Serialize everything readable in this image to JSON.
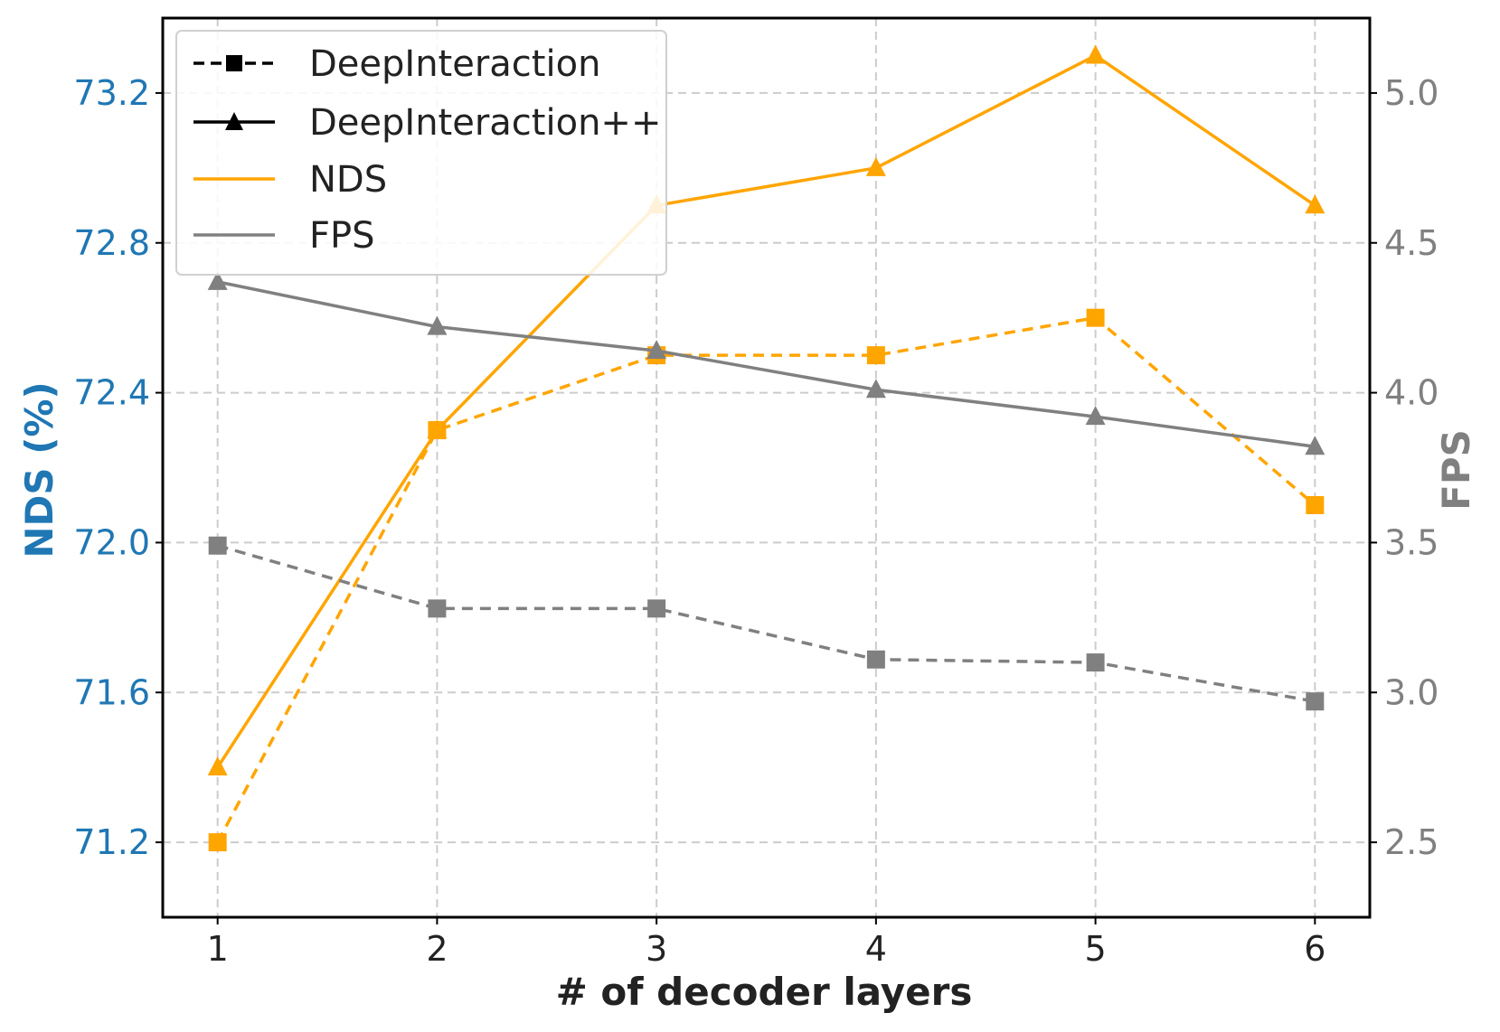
{
  "colors": {
    "nds": "#FFA500",
    "fps": "#808080",
    "left_axis": "#1F77B4",
    "right_axis": "#808080",
    "grid": "#CCCCCC",
    "text": "#222222"
  },
  "chart_data": {
    "type": "line",
    "title": "",
    "xlabel": "# of decoder layers",
    "ylabel_left": "NDS (%)",
    "ylabel_right": "FPS",
    "x": [
      1,
      2,
      3,
      4,
      5,
      6
    ],
    "xlim": [
      0.75,
      6.25
    ],
    "ylim_left": [
      71.0,
      73.4
    ],
    "ylim_right": [
      2.25,
      5.25
    ],
    "xticks": [
      "1",
      "2",
      "3",
      "4",
      "5",
      "6"
    ],
    "yticks_left": [
      "71.2",
      "71.6",
      "72.0",
      "72.4",
      "72.8",
      "73.2"
    ],
    "yticks_right": [
      "2.5",
      "3.0",
      "3.5",
      "4.0",
      "4.5",
      "5.0"
    ],
    "grid": true,
    "legend_position": "top-left",
    "legend": [
      "DeepInteraction",
      "DeepInteraction++",
      "NDS",
      "FPS"
    ],
    "series": [
      {
        "name": "DeepInteraction NDS",
        "axis": "left",
        "metric": "nds",
        "style": "dashed",
        "marker": "square",
        "values": [
          71.2,
          72.3,
          72.5,
          72.5,
          72.6,
          72.1
        ]
      },
      {
        "name": "DeepInteraction++ NDS",
        "axis": "left",
        "metric": "nds",
        "style": "solid",
        "marker": "triangle",
        "values": [
          71.4,
          72.3,
          72.9,
          73.0,
          73.3,
          72.9
        ]
      },
      {
        "name": "DeepInteraction FPS",
        "axis": "right",
        "metric": "fps",
        "style": "dashed",
        "marker": "square",
        "values": [
          3.49,
          3.28,
          3.28,
          3.11,
          3.1,
          2.97
        ]
      },
      {
        "name": "DeepInteraction++ FPS",
        "axis": "right",
        "metric": "fps",
        "style": "solid",
        "marker": "triangle",
        "values": [
          4.37,
          4.22,
          4.14,
          4.01,
          3.92,
          3.82
        ]
      }
    ]
  }
}
